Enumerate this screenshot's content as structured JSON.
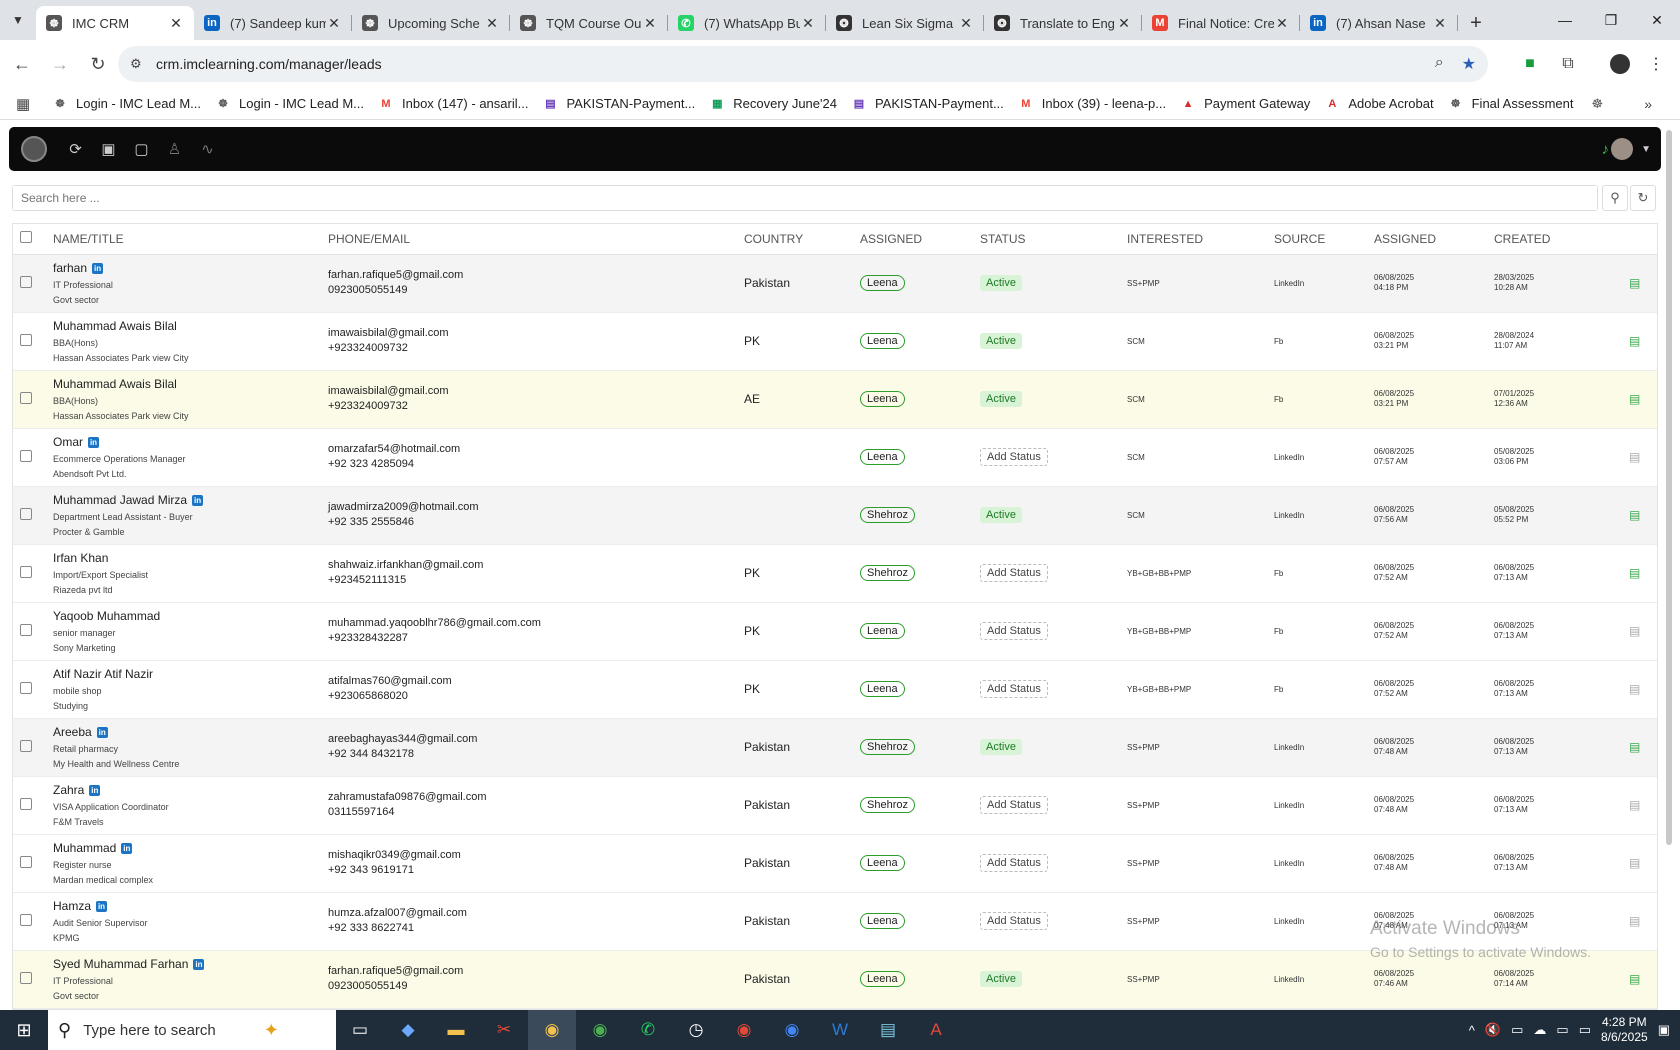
{
  "browser": {
    "tabs": [
      {
        "title": "IMC CRM",
        "icon": "imc-icon",
        "color": "#555555",
        "glyph": "☸",
        "active": true
      },
      {
        "title": "(7) Sandeep kum",
        "icon": "linkedin-icon",
        "color": "#0a66c2",
        "glyph": "in"
      },
      {
        "title": "Upcoming Sche",
        "icon": "imc-icon",
        "color": "#555555",
        "glyph": "☸"
      },
      {
        "title": "TQM Course Ou",
        "icon": "imc-icon",
        "color": "#555555",
        "glyph": "☸"
      },
      {
        "title": "(7) WhatsApp Bu",
        "icon": "whatsapp-icon",
        "color": "#25d366",
        "glyph": "✆"
      },
      {
        "title": "Lean Six Sigma",
        "icon": "chatgpt-icon",
        "color": "#333333",
        "glyph": "❂"
      },
      {
        "title": "Translate to Eng",
        "icon": "chatgpt-icon",
        "color": "#333333",
        "glyph": "❂"
      },
      {
        "title": "Final Notice: Cre",
        "icon": "gmail-icon",
        "color": "#ea4335",
        "glyph": "M"
      },
      {
        "title": "(7) Ahsan Nase",
        "icon": "linkedin-icon",
        "color": "#0a66c2",
        "glyph": "in"
      }
    ],
    "url": "crm.imclearning.com/manager/leads",
    "bookmarks": [
      {
        "label": "Login - IMC Lead M...",
        "icon": "imc-icon",
        "color": "#555555",
        "glyph": "☸"
      },
      {
        "label": "Login - IMC Lead M...",
        "icon": "imc-icon",
        "color": "#555555",
        "glyph": "☸"
      },
      {
        "label": "Inbox (147) - ansaril...",
        "icon": "gmail-icon",
        "color": "#ea4335",
        "glyph": "M"
      },
      {
        "label": "PAKISTAN-Payment...",
        "icon": "forms-icon",
        "color": "#673ab7",
        "glyph": "▤"
      },
      {
        "label": "Recovery June'24",
        "icon": "sheets-icon",
        "color": "#0f9d58",
        "glyph": "▦"
      },
      {
        "label": "PAKISTAN-Payment...",
        "icon": "forms-icon",
        "color": "#673ab7",
        "glyph": "▤"
      },
      {
        "label": "Inbox (39) - leena-p...",
        "icon": "gmail-icon",
        "color": "#ea4335",
        "glyph": "M"
      },
      {
        "label": "Payment Gateway",
        "icon": "gateway-icon",
        "color": "#d32f2f",
        "glyph": "▲"
      },
      {
        "label": "Adobe Acrobat",
        "icon": "acrobat-icon",
        "color": "#d32f2f",
        "glyph": "A"
      },
      {
        "label": "Final Assessment",
        "icon": "imc-icon",
        "color": "#555555",
        "glyph": "☸"
      }
    ]
  },
  "app": {
    "search_placeholder": "Search here ...",
    "columns": [
      "NAME/TITLE",
      "PHONE/EMAIL",
      "COUNTRY",
      "ASSIGNED",
      "STATUS",
      "INTERESTED",
      "SOURCE",
      "ASSIGNED",
      "CREATED"
    ],
    "leads": [
      {
        "row": "gray",
        "name": "farhan",
        "linkedin": true,
        "title": "IT Professional",
        "company": "Govt sector",
        "email": "farhan.rafique5@gmail.com",
        "phone": "0923005055149",
        "country": "Pakistan",
        "assigned": "Leena",
        "status": "Active",
        "interested": "SS+PMP",
        "source": "LinkedIn",
        "assigned_date": "06/08/2025",
        "assigned_time": "04:18 PM",
        "created_date": "28/03/2025",
        "created_time": "10:28 AM",
        "doc": "green"
      },
      {
        "row": "white",
        "name": "Muhammad Awais Bilal",
        "linkedin": false,
        "title": "BBA(Hons)",
        "company": "Hassan Associates Park view City",
        "email": "imawaisbilal@gmail.com",
        "phone": "+923324009732",
        "country": "PK",
        "assigned": "Leena",
        "status": "Active",
        "interested": "SCM",
        "source": "Fb",
        "assigned_date": "06/08/2025",
        "assigned_time": "03:21 PM",
        "created_date": "28/08/2024",
        "created_time": "11:07 AM",
        "doc": "green"
      },
      {
        "row": "yellow",
        "name": "Muhammad Awais Bilal",
        "linkedin": false,
        "title": "BBA(Hons)",
        "company": "Hassan Associates Park view City",
        "email": "imawaisbilal@gmail.com",
        "phone": "+923324009732",
        "country": "AE",
        "assigned": "Leena",
        "status": "Active",
        "interested": "SCM",
        "source": "Fb",
        "assigned_date": "06/08/2025",
        "assigned_time": "03:21 PM",
        "created_date": "07/01/2025",
        "created_time": "12:36 AM",
        "doc": "green"
      },
      {
        "row": "white",
        "name": "Omar",
        "linkedin": true,
        "title": "Ecommerce Operations Manager",
        "company": "Abendsoft Pvt Ltd.",
        "email": "omarzafar54@hotmail.com",
        "phone": "+92 323 4285094",
        "country": "",
        "assigned": "Leena",
        "status": "Add Status",
        "interested": "SCM",
        "source": "LinkedIn",
        "assigned_date": "06/08/2025",
        "assigned_time": "07:57 AM",
        "created_date": "05/08/2025",
        "created_time": "03:06 PM",
        "doc": "gray"
      },
      {
        "row": "gray",
        "name": "Muhammad Jawad Mirza",
        "linkedin": true,
        "title": "Department Lead Assistant - Buyer",
        "company": "Procter & Gamble",
        "email": "jawadmirza2009@hotmail.com",
        "phone": "+92 335 2555846",
        "country": "",
        "assigned": "Shehroz",
        "status": "Active",
        "interested": "SCM",
        "source": "LinkedIn",
        "assigned_date": "06/08/2025",
        "assigned_time": "07:56 AM",
        "created_date": "05/08/2025",
        "created_time": "05:52 PM",
        "doc": "green"
      },
      {
        "row": "white",
        "name": "Irfan Khan",
        "linkedin": false,
        "title": "Import/Export Specialist",
        "company": "Riazeda pvt ltd",
        "email": "shahwaiz.irfankhan@gmail.com",
        "phone": "+923452111315",
        "country": "PK",
        "assigned": "Shehroz",
        "status": "Add Status",
        "interested": "YB+GB+BB+PMP",
        "source": "Fb",
        "assigned_date": "06/08/2025",
        "assigned_time": "07:52 AM",
        "created_date": "06/08/2025",
        "created_time": "07:13 AM",
        "doc": "green"
      },
      {
        "row": "white",
        "name": "Yaqoob Muhammad",
        "linkedin": false,
        "title": "senior manager",
        "company": "Sony Marketing",
        "email": "muhammad.yaqooblhr786@gmail.com.com",
        "phone": "+923328432287",
        "country": "PK",
        "assigned": "Leena",
        "status": "Add Status",
        "interested": "YB+GB+BB+PMP",
        "source": "Fb",
        "assigned_date": "06/08/2025",
        "assigned_time": "07:52 AM",
        "created_date": "06/08/2025",
        "created_time": "07:13 AM",
        "doc": "gray"
      },
      {
        "row": "white",
        "name": "Atif Nazir Atif Nazir",
        "linkedin": false,
        "title": "mobile shop",
        "company": "Studying",
        "email": "atifalmas760@gmail.com",
        "phone": "+923065868020",
        "country": "PK",
        "assigned": "Leena",
        "status": "Add Status",
        "interested": "YB+GB+BB+PMP",
        "source": "Fb",
        "assigned_date": "06/08/2025",
        "assigned_time": "07:52 AM",
        "created_date": "06/08/2025",
        "created_time": "07:13 AM",
        "doc": "gray"
      },
      {
        "row": "gray",
        "name": "Areeba",
        "linkedin": true,
        "title": "Retail pharmacy",
        "company": "My Health and Wellness Centre",
        "email": "areebaghayas344@gmail.com",
        "phone": "+92 344 8432178",
        "country": "Pakistan",
        "assigned": "Shehroz",
        "status": "Active",
        "interested": "SS+PMP",
        "source": "LinkedIn",
        "assigned_date": "06/08/2025",
        "assigned_time": "07:48 AM",
        "created_date": "06/08/2025",
        "created_time": "07:13 AM",
        "doc": "green"
      },
      {
        "row": "white",
        "name": "Zahra",
        "linkedin": true,
        "title": "VISA Application Coordinator",
        "company": "F&M Travels",
        "email": "zahramustafa09876@gmail.com",
        "phone": "03115597164",
        "country": "Pakistan",
        "assigned": "Shehroz",
        "status": "Add Status",
        "interested": "SS+PMP",
        "source": "LinkedIn",
        "assigned_date": "06/08/2025",
        "assigned_time": "07:48 AM",
        "created_date": "06/08/2025",
        "created_time": "07:13 AM",
        "doc": "gray"
      },
      {
        "row": "white",
        "name": "Muhammad",
        "linkedin": true,
        "title": "Register nurse",
        "company": "Mardan medical complex",
        "email": "mishaqikr0349@gmail.com",
        "phone": "+92 343 9619171",
        "country": "Pakistan",
        "assigned": "Leena",
        "status": "Add Status",
        "interested": "SS+PMP",
        "source": "LinkedIn",
        "assigned_date": "06/08/2025",
        "assigned_time": "07:48 AM",
        "created_date": "06/08/2025",
        "created_time": "07:13 AM",
        "doc": "gray"
      },
      {
        "row": "white",
        "name": "Hamza",
        "linkedin": true,
        "title": "Audit Senior Supervisor",
        "company": "KPMG",
        "email": "humza.afzal007@gmail.com",
        "phone": "+92 333 8622741",
        "country": "Pakistan",
        "assigned": "Leena",
        "status": "Add Status",
        "interested": "SS+PMP",
        "source": "LinkedIn",
        "assigned_date": "06/08/2025",
        "assigned_time": "07:48 AM",
        "created_date": "06/08/2025",
        "created_time": "07:13 AM",
        "doc": "gray"
      },
      {
        "row": "yellow",
        "name": "Syed Muhammad Farhan",
        "linkedin": true,
        "title": "IT Professional",
        "company": "Govt sector",
        "email": "farhan.rafique5@gmail.com",
        "phone": "0923005055149",
        "country": "Pakistan",
        "assigned": "Leena",
        "status": "Active",
        "interested": "SS+PMP",
        "source": "LinkedIn",
        "assigned_date": "06/08/2025",
        "assigned_time": "07:46 AM",
        "created_date": "06/08/2025",
        "created_time": "07:14 AM",
        "doc": "green"
      }
    ]
  },
  "watermark": {
    "line1": "Activate Windows",
    "line2": "Go to Settings to activate Windows."
  },
  "taskbar": {
    "search_placeholder": "Type here to search",
    "time": "4:28 PM",
    "date": "8/6/2025"
  }
}
